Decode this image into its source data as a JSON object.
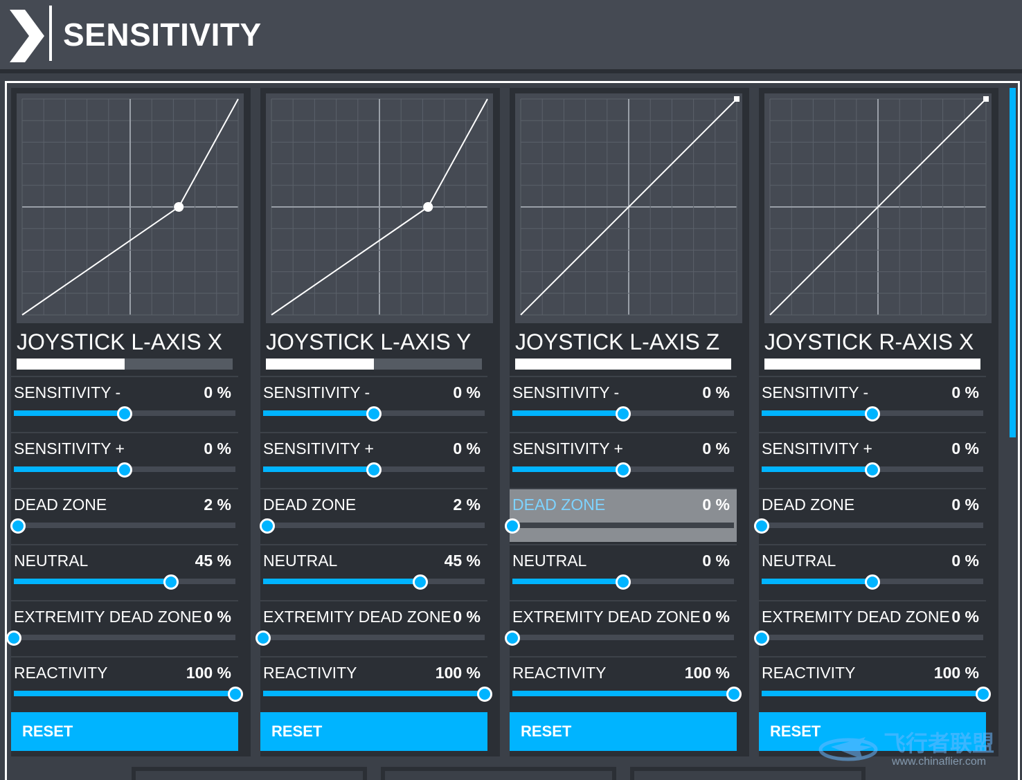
{
  "header": {
    "title": "SENSITIVITY"
  },
  "labels": {
    "sens_minus": "SENSITIVITY -",
    "sens_plus": "SENSITIVITY +",
    "dead_zone": "DEAD ZONE",
    "neutral": "NEUTRAL",
    "extremity": "EXTREMITY DEAD ZONE",
    "reactivity": "REACTIVITY",
    "reset": "RESET"
  },
  "colors": {
    "accent": "#00b4ff",
    "panel": "#2b2f35",
    "graph_bg": "#454a53"
  },
  "panels": [
    {
      "name": "JOYSTICK L-AXIS X",
      "input_level": 0.5,
      "curve": {
        "neutral": 0.45
      },
      "sens_minus": "0 %",
      "sens_minus_level": 0.5,
      "sens_plus": "0 %",
      "sens_plus_level": 0.5,
      "dead_zone": "2 %",
      "dead_zone_level": 0.02,
      "neutral": "45 %",
      "neutral_level": 0.71,
      "extremity": "0 %",
      "extremity_level": 0,
      "reactivity": "100 %",
      "reactivity_level": 1,
      "highlight": false
    },
    {
      "name": "JOYSTICK L-AXIS Y",
      "input_level": 0.5,
      "curve": {
        "neutral": 0.45
      },
      "sens_minus": "0 %",
      "sens_minus_level": 0.5,
      "sens_plus": "0 %",
      "sens_plus_level": 0.5,
      "dead_zone": "2 %",
      "dead_zone_level": 0.02,
      "neutral": "45 %",
      "neutral_level": 0.71,
      "extremity": "0 %",
      "extremity_level": 0,
      "reactivity": "100 %",
      "reactivity_level": 1,
      "highlight": false
    },
    {
      "name": "JOYSTICK L-AXIS Z",
      "input_level": 1,
      "curve": {
        "neutral": 0
      },
      "sens_minus": "0 %",
      "sens_minus_level": 0.5,
      "sens_plus": "0 %",
      "sens_plus_level": 0.5,
      "dead_zone": "0 %",
      "dead_zone_level": 0,
      "neutral": "0 %",
      "neutral_level": 0.5,
      "extremity": "0 %",
      "extremity_level": 0,
      "reactivity": "100 %",
      "reactivity_level": 1,
      "highlight": true
    },
    {
      "name": "JOYSTICK R-AXIS X",
      "input_level": 1,
      "curve": {
        "neutral": 0
      },
      "sens_minus": "0 %",
      "sens_minus_level": 0.5,
      "sens_plus": "0 %",
      "sens_plus_level": 0.5,
      "dead_zone": "0 %",
      "dead_zone_level": 0,
      "neutral": "0 %",
      "neutral_level": 0.5,
      "extremity": "0 %",
      "extremity_level": 0,
      "reactivity": "100 %",
      "reactivity_level": 1,
      "highlight": false
    }
  ],
  "watermark": {
    "text": "飞行者联盟",
    "url": "www.chinaflier.com"
  }
}
